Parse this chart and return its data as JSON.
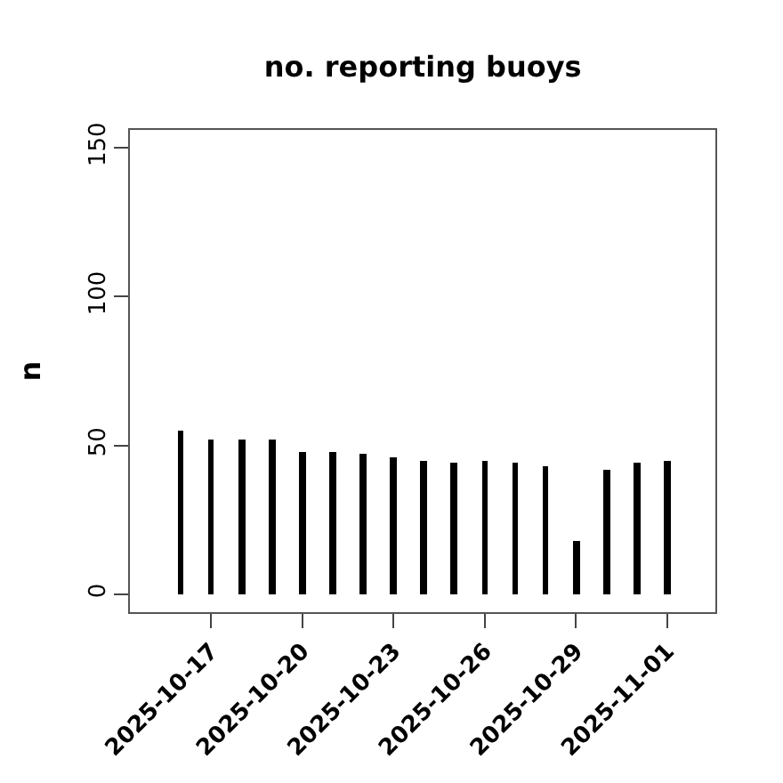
{
  "chart_data": {
    "type": "bar",
    "title": "no. reporting buoys",
    "ylabel": "n",
    "color": "#000000",
    "x": [
      "2025-10-16",
      "2025-10-17",
      "2025-10-18",
      "2025-10-19",
      "2025-10-20",
      "2025-10-21",
      "2025-10-22",
      "2025-10-23",
      "2025-10-24",
      "2025-10-25",
      "2025-10-26",
      "2025-10-27",
      "2025-10-28",
      "2025-10-29",
      "2025-10-30",
      "2025-10-31",
      "2025-11-01"
    ],
    "values": [
      55,
      52,
      52,
      52,
      48,
      48,
      47,
      46,
      45,
      44,
      45,
      44,
      43,
      18,
      42,
      44,
      45
    ],
    "xlim": [
      "2025-10-14T08:00",
      "2025-11-02T14:00"
    ],
    "xticks": [
      "2025-10-17",
      "2025-10-20",
      "2025-10-23",
      "2025-10-26",
      "2025-10-29",
      "2025-11-01"
    ],
    "ylim": [
      -6,
      156
    ],
    "yticks": [
      0,
      50,
      100,
      150
    ]
  }
}
